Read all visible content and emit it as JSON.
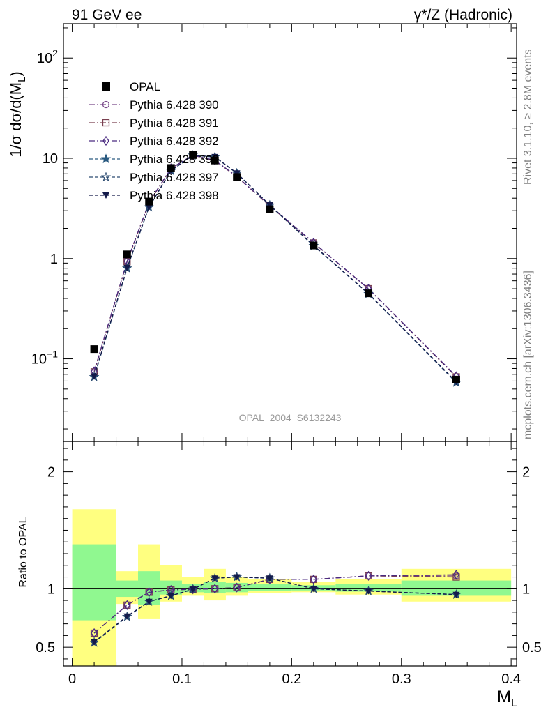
{
  "header": {
    "left": "91 GeV ee",
    "right": "γ*/Z (Hadronic)"
  },
  "side": {
    "rivet": "Rivet 3.1.10, ≥ 2.8M events",
    "mcplots": "mcplots.cern.ch [arXiv:1306.3436]"
  },
  "watermark": "OPAL_2004_S6132243",
  "colors": {
    "yellow_band": "#ffff80",
    "green_band": "#90f890",
    "data": "#000000"
  },
  "chart_data": [
    {
      "panel": "main",
      "type": "line",
      "log_y": true,
      "ylabel": "1/σ dσ/d(M_L)",
      "xlim": [
        -0.008,
        0.405
      ],
      "ylim": [
        0.015,
        220
      ],
      "y_tick_labels": [
        "10^-1",
        "1",
        "10",
        "10^2"
      ],
      "x": [
        0.02,
        0.05,
        0.07,
        0.09,
        0.11,
        0.13,
        0.15,
        0.18,
        0.22,
        0.27,
        0.35
      ],
      "data": {
        "name": "OPAL",
        "color": "#000000",
        "marker": "square",
        "values": [
          0.125,
          1.1,
          3.7,
          8.0,
          10.8,
          9.5,
          6.5,
          3.1,
          1.35,
          0.45,
          0.062
        ]
      },
      "series": [
        {
          "name": "Pythia 6.428 390",
          "color": "#7a4a8a",
          "marker": "circle-open",
          "dash": "8,3,2,3",
          "values": [
            0.074,
            0.93,
            3.6,
            7.9,
            10.7,
            9.5,
            6.55,
            3.35,
            1.43,
            0.5,
            0.066
          ]
        },
        {
          "name": "Pythia 6.428 391",
          "color": "#7a4050",
          "marker": "square-open",
          "dash": "8,3,2,3",
          "values": [
            0.074,
            0.93,
            3.6,
            7.9,
            10.7,
            9.5,
            6.55,
            3.35,
            1.43,
            0.5,
            0.066
          ]
        },
        {
          "name": "Pythia 6.428 392",
          "color": "#4a2a80",
          "marker": "diamond-open",
          "dash": "8,3,2,3",
          "values": [
            0.075,
            0.94,
            3.65,
            7.95,
            10.75,
            9.55,
            6.6,
            3.38,
            1.44,
            0.5,
            0.067
          ]
        },
        {
          "name": "Pythia 6.428 396",
          "color": "#2a5a80",
          "marker": "star-filled",
          "dash": "5,3",
          "values": [
            0.066,
            0.8,
            3.25,
            7.5,
            10.7,
            10.3,
            7.1,
            3.4,
            1.34,
            0.445,
            0.058
          ]
        },
        {
          "name": "Pythia 6.428 397",
          "color": "#2a4a70",
          "marker": "star-open",
          "dash": "5,3",
          "values": [
            0.066,
            0.8,
            3.25,
            7.5,
            10.7,
            10.3,
            7.1,
            3.4,
            1.34,
            0.445,
            0.058
          ]
        },
        {
          "name": "Pythia 6.428 398",
          "color": "#141a4a",
          "marker": "triangle-down",
          "dash": "5,3",
          "values": [
            0.067,
            0.81,
            3.28,
            7.55,
            10.75,
            10.35,
            7.12,
            3.42,
            1.35,
            0.448,
            0.059
          ]
        }
      ],
      "legend_position": "top-left"
    },
    {
      "panel": "ratio",
      "type": "line",
      "ylabel": "Ratio to OPAL",
      "xlabel": "M_L",
      "xlim": [
        -0.008,
        0.405
      ],
      "ylim": [
        0.34,
        2.26
      ],
      "x_tick_labels": [
        "0",
        "0.1",
        "0.2",
        "0.3",
        "0.4"
      ],
      "y_tick_labels": [
        "0.5",
        "1",
        "2"
      ],
      "bands": {
        "bins": [
          [
            0.0,
            0.04
          ],
          [
            0.04,
            0.06
          ],
          [
            0.06,
            0.08
          ],
          [
            0.08,
            0.1
          ],
          [
            0.1,
            0.12
          ],
          [
            0.12,
            0.14
          ],
          [
            0.14,
            0.16
          ],
          [
            0.16,
            0.2
          ],
          [
            0.2,
            0.24
          ],
          [
            0.24,
            0.3
          ],
          [
            0.3,
            0.4
          ]
        ],
        "yellow_low": [
          0.34,
          0.87,
          0.74,
          0.89,
          0.94,
          0.9,
          0.94,
          0.96,
          0.97,
          0.95,
          0.89
        ],
        "yellow_high": [
          1.68,
          1.15,
          1.38,
          1.2,
          1.1,
          1.17,
          1.1,
          1.08,
          1.06,
          1.08,
          1.17
        ],
        "green_low": [
          0.73,
          0.93,
          0.86,
          0.95,
          0.97,
          0.96,
          0.97,
          0.98,
          0.985,
          0.975,
          0.94
        ],
        "green_high": [
          1.38,
          1.07,
          1.15,
          1.07,
          1.04,
          1.06,
          1.05,
          1.04,
          1.03,
          1.04,
          1.07
        ]
      },
      "x": [
        0.02,
        0.05,
        0.07,
        0.09,
        0.11,
        0.13,
        0.15,
        0.18,
        0.22,
        0.27,
        0.35
      ],
      "series": [
        {
          "name": "Pythia 6.428 390",
          "color": "#7a4a8a",
          "marker": "circle-open",
          "dash": "8,3,2,3",
          "values": [
            0.62,
            0.86,
            0.97,
            0.99,
            0.995,
            1.0,
            1.01,
            1.08,
            1.08,
            1.11,
            1.11
          ]
        },
        {
          "name": "Pythia 6.428 391",
          "color": "#7a4050",
          "marker": "square-open",
          "dash": "8,3,2,3",
          "values": [
            0.62,
            0.86,
            0.97,
            0.99,
            0.995,
            1.0,
            1.01,
            1.08,
            1.08,
            1.11,
            1.1
          ]
        },
        {
          "name": "Pythia 6.428 392",
          "color": "#4a2a80",
          "marker": "diamond-open",
          "dash": "8,3,2,3",
          "values": [
            0.62,
            0.86,
            0.97,
            0.99,
            0.995,
            1.0,
            1.01,
            1.08,
            1.08,
            1.11,
            1.12
          ]
        },
        {
          "name": "Pythia 6.428 396",
          "color": "#2a5a80",
          "marker": "star-filled",
          "dash": "5,3",
          "values": [
            0.54,
            0.76,
            0.89,
            0.94,
            0.995,
            1.09,
            1.1,
            1.09,
            1.0,
            0.98,
            0.95
          ]
        },
        {
          "name": "Pythia 6.428 397",
          "color": "#2a4a70",
          "marker": "star-open",
          "dash": "5,3",
          "values": [
            0.54,
            0.76,
            0.89,
            0.94,
            0.995,
            1.09,
            1.1,
            1.09,
            1.0,
            0.98,
            0.95
          ]
        },
        {
          "name": "Pythia 6.428 398",
          "color": "#141a4a",
          "marker": "triangle-down",
          "dash": "5,3",
          "values": [
            0.545,
            0.765,
            0.89,
            0.94,
            0.995,
            1.09,
            1.1,
            1.09,
            1.0,
            0.98,
            0.95
          ]
        }
      ]
    }
  ]
}
